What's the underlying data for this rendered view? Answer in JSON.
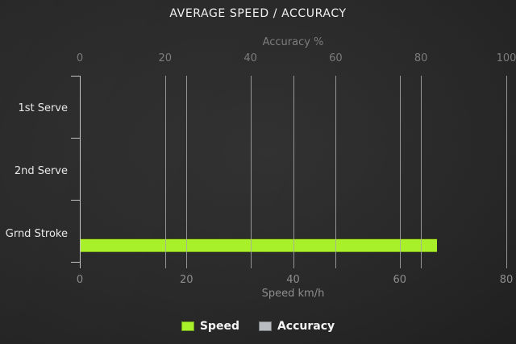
{
  "chart_data": {
    "type": "bar",
    "orientation": "horizontal",
    "title": "AVERAGE SPEED / ACCURACY",
    "categories": [
      "1st Serve",
      "2nd Serve",
      "Grnd Stroke"
    ],
    "series": [
      {
        "name": "Speed",
        "axis": "bottom",
        "unit": "km/h",
        "color": "#a7f02a",
        "values": [
          0,
          0,
          67
        ]
      },
      {
        "name": "Accuracy",
        "axis": "top",
        "unit": "%",
        "color": "#b9bdc2",
        "values": [
          0,
          0,
          0
        ]
      }
    ],
    "top_axis": {
      "label": "Accuracy %",
      "min": 0,
      "max": 100,
      "ticks": [
        "0",
        "20",
        "40",
        "60",
        "80",
        "100"
      ]
    },
    "bottom_axis": {
      "label": "Speed km/h",
      "min": 0,
      "max": 80,
      "ticks": [
        "0",
        "20",
        "40",
        "60",
        "80"
      ]
    },
    "grid": true,
    "legend_position": "bottom",
    "theme": {
      "background": "#222222",
      "gridline_color": "#a8a8a8",
      "axis_color": "#c4c4c4",
      "title_color": "#f0f0f0",
      "tick_color": "#8e8e8e"
    }
  },
  "legend": {
    "items": [
      {
        "label": "Speed",
        "color": "#a7f02a"
      },
      {
        "label": "Accuracy",
        "color": "#b9bdc2"
      }
    ]
  }
}
